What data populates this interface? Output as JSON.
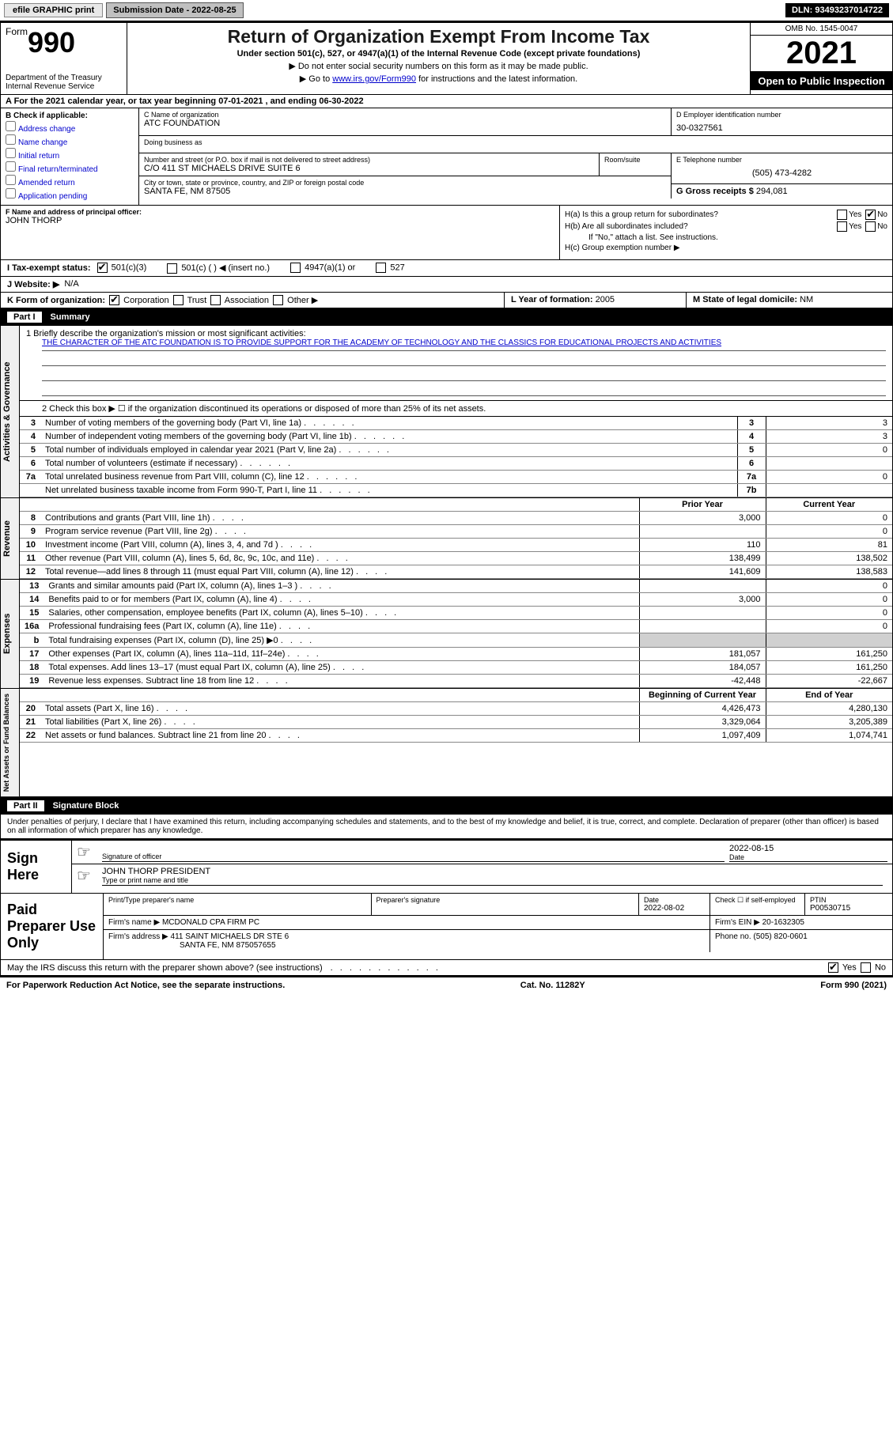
{
  "topbar": {
    "efile_label": "efile GRAPHIC print",
    "submission_label": "Submission Date - 2022-08-25",
    "dln_label": "DLN: 93493237014722"
  },
  "header": {
    "form_word": "Form",
    "form_num": "990",
    "title": "Return of Organization Exempt From Income Tax",
    "sub1": "Under section 501(c), 527, or 4947(a)(1) of the Internal Revenue Code (except private foundations)",
    "sub2": "▶ Do not enter social security numbers on this form as it may be made public.",
    "sub3_pre": "▶ Go to ",
    "sub3_link": "www.irs.gov/Form990",
    "sub3_post": " for instructions and the latest information.",
    "dept": "Department of the Treasury\nInternal Revenue Service",
    "omb": "OMB No. 1545-0047",
    "year": "2021",
    "open": "Open to Public Inspection"
  },
  "section_a": "A For the 2021 calendar year, or tax year beginning 07-01-2021    , and ending 06-30-2022",
  "box_b": {
    "label": "B Check if applicable:",
    "items": [
      "Address change",
      "Name change",
      "Initial return",
      "Final return/terminated",
      "Amended return",
      "Application pending"
    ]
  },
  "box_c": {
    "label": "C Name of organization",
    "name": "ATC FOUNDATION",
    "dba_label": "Doing business as",
    "street_label": "Number and street (or P.O. box if mail is not delivered to street address)",
    "room_label": "Room/suite",
    "street": "C/O 411 ST MICHAELS DRIVE SUITE 6",
    "city_label": "City or town, state or province, country, and ZIP or foreign postal code",
    "city": "SANTA FE, NM  87505"
  },
  "box_d": {
    "label": "D Employer identification number",
    "value": "30-0327561"
  },
  "box_e": {
    "label": "E Telephone number",
    "value": "(505) 473-4282"
  },
  "box_g": {
    "label": "G Gross receipts $",
    "value": "294,081"
  },
  "box_f": {
    "label": "F Name and address of principal officer:",
    "value": "JOHN THORP"
  },
  "box_h": {
    "ha": "H(a) Is this a group return for subordinates?",
    "hb": "H(b) Are all subordinates included?",
    "hb_note": "If \"No,\" attach a list. See instructions.",
    "hc": "H(c) Group exemption number ▶",
    "yes": "Yes",
    "no": "No"
  },
  "row_i": {
    "label": "I   Tax-exempt status:",
    "opt1": "501(c)(3)",
    "opt2": "501(c) (  ) ◀ (insert no.)",
    "opt3": "4947(a)(1) or",
    "opt4": "527"
  },
  "row_j": {
    "label": "J   Website: ▶",
    "value": "N/A"
  },
  "row_k": {
    "label": "K Form of organization:",
    "opts": [
      "Corporation",
      "Trust",
      "Association",
      "Other ▶"
    ]
  },
  "row_l": {
    "label": "L Year of formation:",
    "value": "2005"
  },
  "row_m": {
    "label": "M State of legal domicile:",
    "value": "NM"
  },
  "part1": {
    "title": "Part I",
    "heading": "Summary",
    "q1_label": "1  Briefly describe the organization's mission or most significant activities:",
    "mission": "THE CHARACTER OF THE ATC FOUNDATION IS TO PROVIDE SUPPORT FOR THE ACADEMY OF TECHNOLOGY AND THE CLASSICS FOR EDUCATIONAL PROJECTS AND ACTIVITIES",
    "q2": "2   Check this box ▶ ☐ if the organization discontinued its operations or disposed of more than 25% of its net assets.",
    "side1": "Activities & Governance",
    "side2": "Revenue",
    "side3": "Expenses",
    "side4": "Net Assets or Fund Balances",
    "rows_ag": [
      {
        "n": "3",
        "d": "Number of voting members of the governing body (Part VI, line 1a)",
        "box": "3",
        "v": "3"
      },
      {
        "n": "4",
        "d": "Number of independent voting members of the governing body (Part VI, line 1b)",
        "box": "4",
        "v": "3"
      },
      {
        "n": "5",
        "d": "Total number of individuals employed in calendar year 2021 (Part V, line 2a)",
        "box": "5",
        "v": "0"
      },
      {
        "n": "6",
        "d": "Total number of volunteers (estimate if necessary)",
        "box": "6",
        "v": ""
      },
      {
        "n": "7a",
        "d": "Total unrelated business revenue from Part VIII, column (C), line 12",
        "box": "7a",
        "v": "0"
      },
      {
        "n": "",
        "d": "Net unrelated business taxable income from Form 990-T, Part I, line 11",
        "box": "7b",
        "v": ""
      }
    ],
    "prior_label": "Prior Year",
    "current_label": "Current Year",
    "rows_rev": [
      {
        "n": "8",
        "d": "Contributions and grants (Part VIII, line 1h)",
        "p": "3,000",
        "c": "0"
      },
      {
        "n": "9",
        "d": "Program service revenue (Part VIII, line 2g)",
        "p": "",
        "c": "0"
      },
      {
        "n": "10",
        "d": "Investment income (Part VIII, column (A), lines 3, 4, and 7d )",
        "p": "110",
        "c": "81"
      },
      {
        "n": "11",
        "d": "Other revenue (Part VIII, column (A), lines 5, 6d, 8c, 9c, 10c, and 11e)",
        "p": "138,499",
        "c": "138,502"
      },
      {
        "n": "12",
        "d": "Total revenue—add lines 8 through 11 (must equal Part VIII, column (A), line 12)",
        "p": "141,609",
        "c": "138,583"
      }
    ],
    "rows_exp": [
      {
        "n": "13",
        "d": "Grants and similar amounts paid (Part IX, column (A), lines 1–3 )",
        "p": "",
        "c": "0"
      },
      {
        "n": "14",
        "d": "Benefits paid to or for members (Part IX, column (A), line 4)",
        "p": "3,000",
        "c": "0"
      },
      {
        "n": "15",
        "d": "Salaries, other compensation, employee benefits (Part IX, column (A), lines 5–10)",
        "p": "",
        "c": "0"
      },
      {
        "n": "16a",
        "d": "Professional fundraising fees (Part IX, column (A), line 11e)",
        "p": "",
        "c": "0"
      },
      {
        "n": "b",
        "d": "Total fundraising expenses (Part IX, column (D), line 25) ▶0",
        "p": "",
        "c": "",
        "shade": true
      },
      {
        "n": "17",
        "d": "Other expenses (Part IX, column (A), lines 11a–11d, 11f–24e)",
        "p": "181,057",
        "c": "161,250"
      },
      {
        "n": "18",
        "d": "Total expenses. Add lines 13–17 (must equal Part IX, column (A), line 25)",
        "p": "184,057",
        "c": "161,250"
      },
      {
        "n": "19",
        "d": "Revenue less expenses. Subtract line 18 from line 12",
        "p": "-42,448",
        "c": "-22,667"
      }
    ],
    "begin_label": "Beginning of Current Year",
    "end_label": "End of Year",
    "rows_net": [
      {
        "n": "20",
        "d": "Total assets (Part X, line 16)",
        "p": "4,426,473",
        "c": "4,280,130"
      },
      {
        "n": "21",
        "d": "Total liabilities (Part X, line 26)",
        "p": "3,329,064",
        "c": "3,205,389"
      },
      {
        "n": "22",
        "d": "Net assets or fund balances. Subtract line 21 from line 20",
        "p": "1,097,409",
        "c": "1,074,741"
      }
    ]
  },
  "part2": {
    "title": "Part II",
    "heading": "Signature Block",
    "decl": "Under penalties of perjury, I declare that I have examined this return, including accompanying schedules and statements, and to the best of my knowledge and belief, it is true, correct, and complete. Declaration of preparer (other than officer) is based on all information of which preparer has any knowledge.",
    "sign_here": "Sign Here",
    "sig_officer": "Signature of officer",
    "sig_date": "2022-08-15",
    "officer_name": "JOHN THORP PRESIDENT",
    "type_name": "Type or print name and title",
    "date_label": "Date",
    "paid_label": "Paid Preparer Use Only",
    "prep_name_label": "Print/Type preparer's name",
    "prep_sig_label": "Preparer's signature",
    "prep_date_label": "Date",
    "prep_date": "2022-08-02",
    "check_if": "Check ☐ if self-employed",
    "ptin_label": "PTIN",
    "ptin": "P00530715",
    "firm_name_label": "Firm's name    ▶",
    "firm_name": "MCDONALD CPA FIRM PC",
    "firm_ein_label": "Firm's EIN ▶",
    "firm_ein": "20-1632305",
    "firm_addr_label": "Firm's address ▶",
    "firm_addr1": "411 SAINT MICHAELS DR STE 6",
    "firm_addr2": "SANTA FE, NM  875057655",
    "phone_label": "Phone no.",
    "phone": "(505) 820-0601",
    "discuss": "May the IRS discuss this return with the preparer shown above? (see instructions)",
    "yes": "Yes",
    "no": "No"
  },
  "footer": {
    "pra": "For Paperwork Reduction Act Notice, see the separate instructions.",
    "cat": "Cat. No. 11282Y",
    "form": "Form 990 (2021)"
  }
}
